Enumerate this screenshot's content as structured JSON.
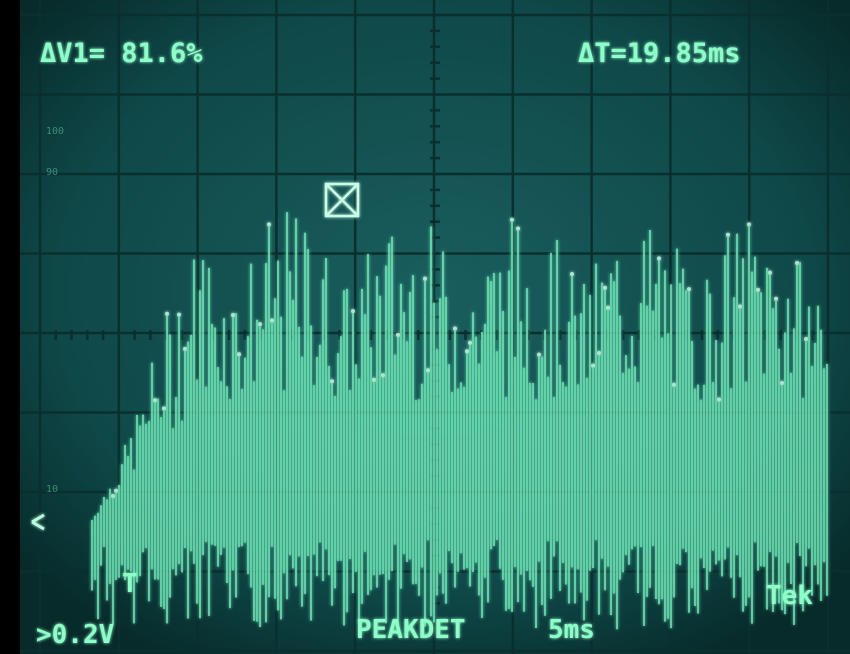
{
  "readouts": {
    "delta_v": "ΔV1= 81.6%",
    "delta_t": "ΔT=19.85ms",
    "volts_per_div": ">0.2V",
    "acquisition": "PEAKDET",
    "time_per_div": "5ms",
    "brand": "Tek",
    "trigger": "T"
  },
  "graticule_labels": [
    "100",
    "90",
    "10"
  ]
}
